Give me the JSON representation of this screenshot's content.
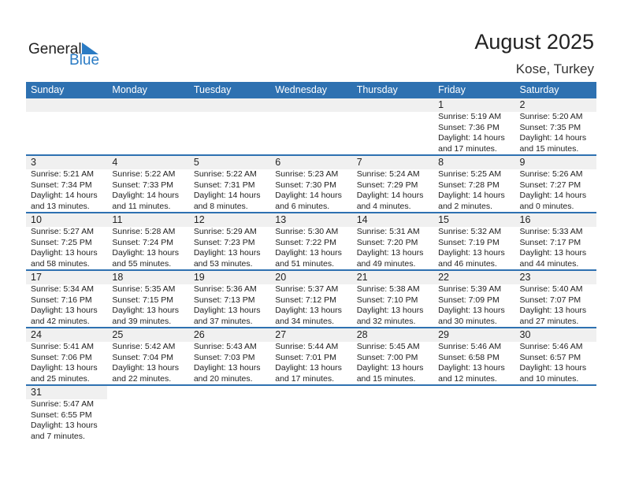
{
  "logo": {
    "text1": "General",
    "text2": "Blue"
  },
  "header": {
    "title": "August 2025",
    "location": "Kose, Turkey"
  },
  "colors": {
    "accent": "#2e71b1",
    "logo_blue": "#2a7bc4"
  },
  "weekdays": [
    "Sunday",
    "Monday",
    "Tuesday",
    "Wednesday",
    "Thursday",
    "Friday",
    "Saturday"
  ],
  "weeks": [
    [
      null,
      null,
      null,
      null,
      null,
      {
        "day": "1",
        "sunrise": "Sunrise: 5:19 AM",
        "sunset": "Sunset: 7:36 PM",
        "daylight1": "Daylight: 14 hours",
        "daylight2": "and 17 minutes."
      },
      {
        "day": "2",
        "sunrise": "Sunrise: 5:20 AM",
        "sunset": "Sunset: 7:35 PM",
        "daylight1": "Daylight: 14 hours",
        "daylight2": "and 15 minutes."
      }
    ],
    [
      {
        "day": "3",
        "sunrise": "Sunrise: 5:21 AM",
        "sunset": "Sunset: 7:34 PM",
        "daylight1": "Daylight: 14 hours",
        "daylight2": "and 13 minutes."
      },
      {
        "day": "4",
        "sunrise": "Sunrise: 5:22 AM",
        "sunset": "Sunset: 7:33 PM",
        "daylight1": "Daylight: 14 hours",
        "daylight2": "and 11 minutes."
      },
      {
        "day": "5",
        "sunrise": "Sunrise: 5:22 AM",
        "sunset": "Sunset: 7:31 PM",
        "daylight1": "Daylight: 14 hours",
        "daylight2": "and 8 minutes."
      },
      {
        "day": "6",
        "sunrise": "Sunrise: 5:23 AM",
        "sunset": "Sunset: 7:30 PM",
        "daylight1": "Daylight: 14 hours",
        "daylight2": "and 6 minutes."
      },
      {
        "day": "7",
        "sunrise": "Sunrise: 5:24 AM",
        "sunset": "Sunset: 7:29 PM",
        "daylight1": "Daylight: 14 hours",
        "daylight2": "and 4 minutes."
      },
      {
        "day": "8",
        "sunrise": "Sunrise: 5:25 AM",
        "sunset": "Sunset: 7:28 PM",
        "daylight1": "Daylight: 14 hours",
        "daylight2": "and 2 minutes."
      },
      {
        "day": "9",
        "sunrise": "Sunrise: 5:26 AM",
        "sunset": "Sunset: 7:27 PM",
        "daylight1": "Daylight: 14 hours",
        "daylight2": "and 0 minutes."
      }
    ],
    [
      {
        "day": "10",
        "sunrise": "Sunrise: 5:27 AM",
        "sunset": "Sunset: 7:25 PM",
        "daylight1": "Daylight: 13 hours",
        "daylight2": "and 58 minutes."
      },
      {
        "day": "11",
        "sunrise": "Sunrise: 5:28 AM",
        "sunset": "Sunset: 7:24 PM",
        "daylight1": "Daylight: 13 hours",
        "daylight2": "and 55 minutes."
      },
      {
        "day": "12",
        "sunrise": "Sunrise: 5:29 AM",
        "sunset": "Sunset: 7:23 PM",
        "daylight1": "Daylight: 13 hours",
        "daylight2": "and 53 minutes."
      },
      {
        "day": "13",
        "sunrise": "Sunrise: 5:30 AM",
        "sunset": "Sunset: 7:22 PM",
        "daylight1": "Daylight: 13 hours",
        "daylight2": "and 51 minutes."
      },
      {
        "day": "14",
        "sunrise": "Sunrise: 5:31 AM",
        "sunset": "Sunset: 7:20 PM",
        "daylight1": "Daylight: 13 hours",
        "daylight2": "and 49 minutes."
      },
      {
        "day": "15",
        "sunrise": "Sunrise: 5:32 AM",
        "sunset": "Sunset: 7:19 PM",
        "daylight1": "Daylight: 13 hours",
        "daylight2": "and 46 minutes."
      },
      {
        "day": "16",
        "sunrise": "Sunrise: 5:33 AM",
        "sunset": "Sunset: 7:17 PM",
        "daylight1": "Daylight: 13 hours",
        "daylight2": "and 44 minutes."
      }
    ],
    [
      {
        "day": "17",
        "sunrise": "Sunrise: 5:34 AM",
        "sunset": "Sunset: 7:16 PM",
        "daylight1": "Daylight: 13 hours",
        "daylight2": "and 42 minutes."
      },
      {
        "day": "18",
        "sunrise": "Sunrise: 5:35 AM",
        "sunset": "Sunset: 7:15 PM",
        "daylight1": "Daylight: 13 hours",
        "daylight2": "and 39 minutes."
      },
      {
        "day": "19",
        "sunrise": "Sunrise: 5:36 AM",
        "sunset": "Sunset: 7:13 PM",
        "daylight1": "Daylight: 13 hours",
        "daylight2": "and 37 minutes."
      },
      {
        "day": "20",
        "sunrise": "Sunrise: 5:37 AM",
        "sunset": "Sunset: 7:12 PM",
        "daylight1": "Daylight: 13 hours",
        "daylight2": "and 34 minutes."
      },
      {
        "day": "21",
        "sunrise": "Sunrise: 5:38 AM",
        "sunset": "Sunset: 7:10 PM",
        "daylight1": "Daylight: 13 hours",
        "daylight2": "and 32 minutes."
      },
      {
        "day": "22",
        "sunrise": "Sunrise: 5:39 AM",
        "sunset": "Sunset: 7:09 PM",
        "daylight1": "Daylight: 13 hours",
        "daylight2": "and 30 minutes."
      },
      {
        "day": "23",
        "sunrise": "Sunrise: 5:40 AM",
        "sunset": "Sunset: 7:07 PM",
        "daylight1": "Daylight: 13 hours",
        "daylight2": "and 27 minutes."
      }
    ],
    [
      {
        "day": "24",
        "sunrise": "Sunrise: 5:41 AM",
        "sunset": "Sunset: 7:06 PM",
        "daylight1": "Daylight: 13 hours",
        "daylight2": "and 25 minutes."
      },
      {
        "day": "25",
        "sunrise": "Sunrise: 5:42 AM",
        "sunset": "Sunset: 7:04 PM",
        "daylight1": "Daylight: 13 hours",
        "daylight2": "and 22 minutes."
      },
      {
        "day": "26",
        "sunrise": "Sunrise: 5:43 AM",
        "sunset": "Sunset: 7:03 PM",
        "daylight1": "Daylight: 13 hours",
        "daylight2": "and 20 minutes."
      },
      {
        "day": "27",
        "sunrise": "Sunrise: 5:44 AM",
        "sunset": "Sunset: 7:01 PM",
        "daylight1": "Daylight: 13 hours",
        "daylight2": "and 17 minutes."
      },
      {
        "day": "28",
        "sunrise": "Sunrise: 5:45 AM",
        "sunset": "Sunset: 7:00 PM",
        "daylight1": "Daylight: 13 hours",
        "daylight2": "and 15 minutes."
      },
      {
        "day": "29",
        "sunrise": "Sunrise: 5:46 AM",
        "sunset": "Sunset: 6:58 PM",
        "daylight1": "Daylight: 13 hours",
        "daylight2": "and 12 minutes."
      },
      {
        "day": "30",
        "sunrise": "Sunrise: 5:46 AM",
        "sunset": "Sunset: 6:57 PM",
        "daylight1": "Daylight: 13 hours",
        "daylight2": "and 10 minutes."
      }
    ],
    [
      {
        "day": "31",
        "sunrise": "Sunrise: 5:47 AM",
        "sunset": "Sunset: 6:55 PM",
        "daylight1": "Daylight: 13 hours",
        "daylight2": "and 7 minutes."
      }
    ]
  ]
}
